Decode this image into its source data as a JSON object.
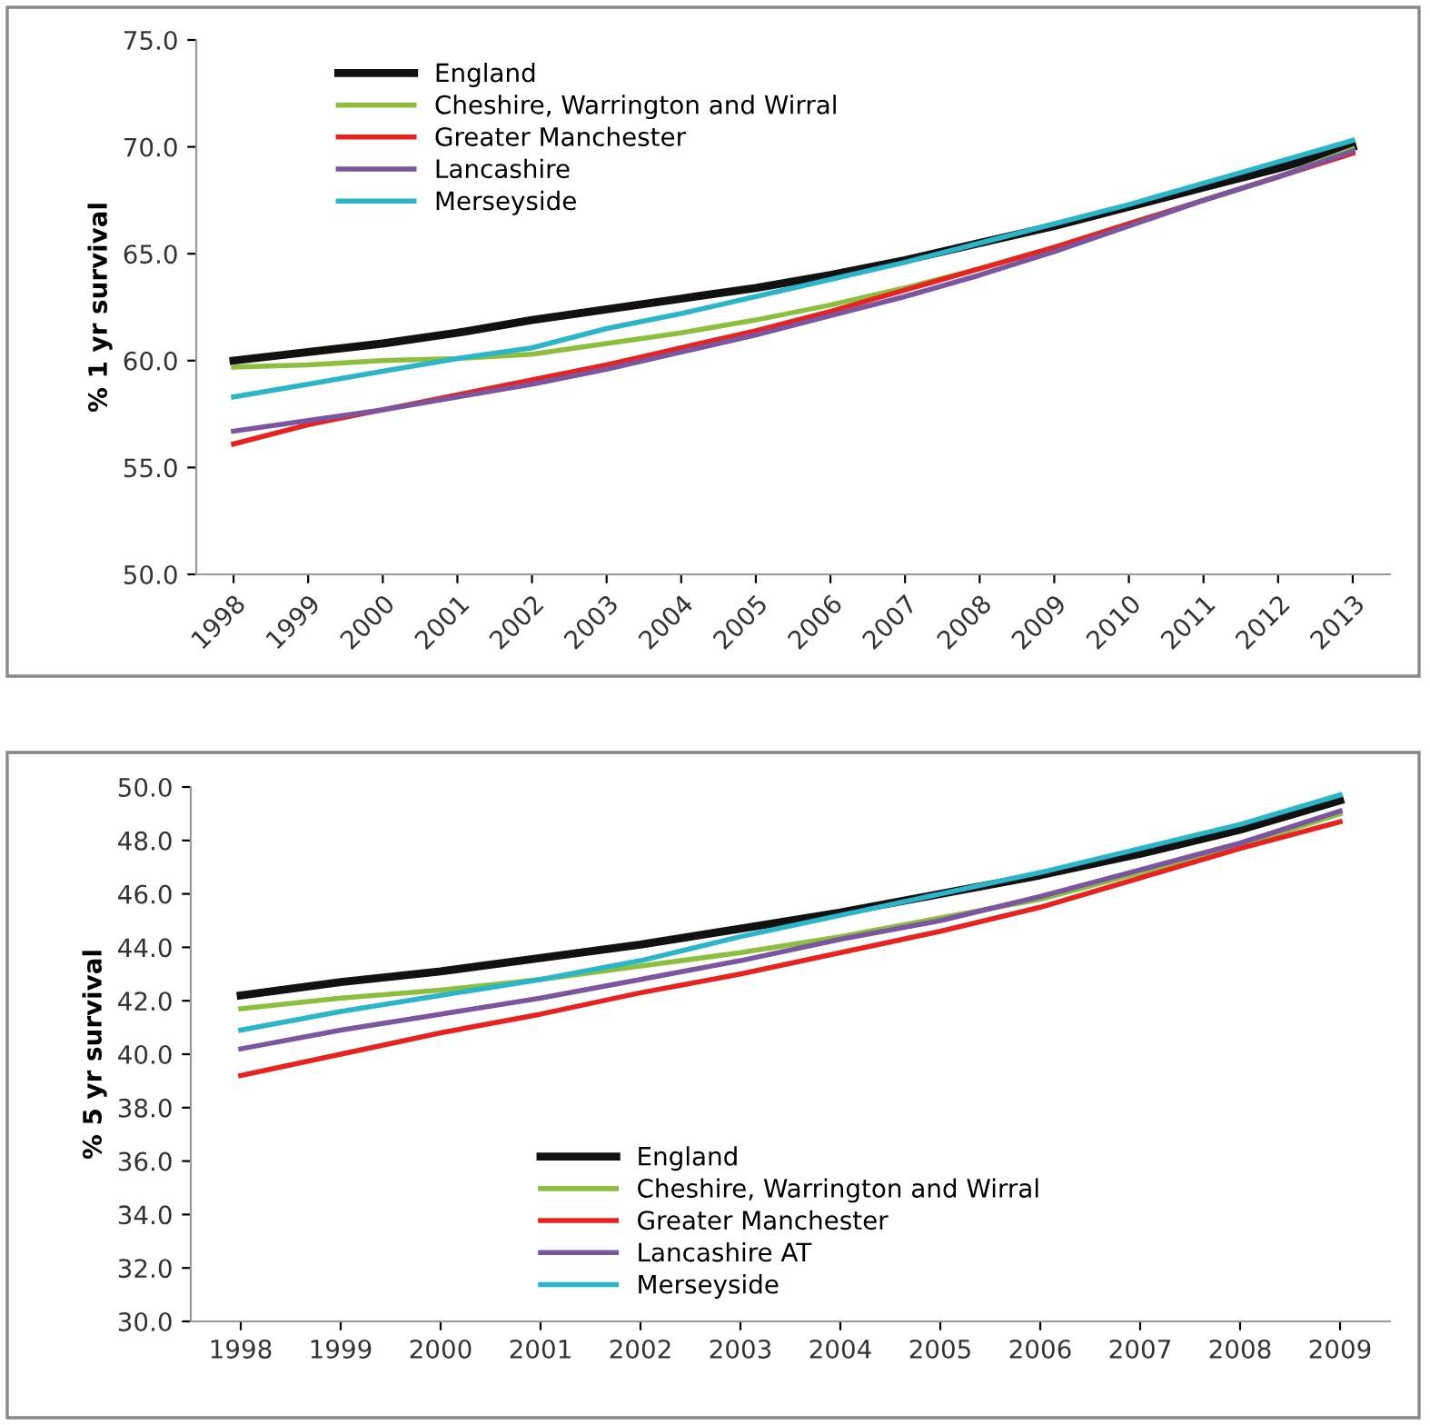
{
  "chart_data": [
    {
      "type": "line",
      "ylabel": "% 1 yr survival",
      "categories": [
        "1998",
        "1999",
        "2000",
        "2001",
        "2002",
        "2003",
        "2004",
        "2005",
        "2006",
        "2007",
        "2008",
        "2009",
        "2010",
        "2011",
        "2012",
        "2013"
      ],
      "ylim": [
        50,
        75
      ],
      "yticks": [
        {
          "value": 50,
          "label": "50.0"
        },
        {
          "value": 55,
          "label": "55.0"
        },
        {
          "value": 60,
          "label": "60.0"
        },
        {
          "value": 65,
          "label": "65.0"
        },
        {
          "value": 70,
          "label": "70.0"
        },
        {
          "value": 75,
          "label": "75.0"
        }
      ],
      "grid": false,
      "legend": "top left",
      "marker": "none",
      "line_style": "solid",
      "series": [
        {
          "name": "England",
          "color": "#111111",
          "values": [
            60.0,
            60.4,
            60.8,
            61.3,
            61.9,
            62.4,
            62.9,
            63.4,
            64.0,
            64.7,
            65.5,
            66.3,
            67.2,
            68.1,
            69.0,
            70.0
          ]
        },
        {
          "name": "Cheshire, Warrington and Wirral",
          "color": "#8dbf3f",
          "values": [
            59.7,
            59.8,
            60.0,
            60.1,
            60.3,
            60.8,
            61.3,
            61.9,
            62.6,
            63.4,
            64.3,
            65.3,
            66.4,
            67.5,
            68.6,
            69.9
          ]
        },
        {
          "name": "Greater Manchester",
          "color": "#e8231f",
          "values": [
            56.1,
            57.0,
            57.7,
            58.4,
            59.1,
            59.8,
            60.6,
            61.4,
            62.3,
            63.3,
            64.3,
            65.3,
            66.4,
            67.5,
            68.6,
            69.7
          ]
        },
        {
          "name": "Lancashire",
          "color": "#7b55a0",
          "values": [
            56.7,
            57.2,
            57.7,
            58.3,
            58.9,
            59.6,
            60.4,
            61.2,
            62.1,
            63.0,
            64.0,
            65.1,
            66.3,
            67.5,
            68.6,
            69.8
          ]
        },
        {
          "name": "Merseyside",
          "color": "#2bb5c8",
          "values": [
            58.3,
            58.9,
            59.5,
            60.1,
            60.6,
            61.5,
            62.2,
            63.0,
            63.8,
            64.6,
            65.5,
            66.4,
            67.3,
            68.3,
            69.3,
            70.3
          ]
        }
      ]
    },
    {
      "type": "line",
      "ylabel": "% 5 yr survival",
      "categories": [
        "1998",
        "1999",
        "2000",
        "2001",
        "2002",
        "2003",
        "2004",
        "2005",
        "2006",
        "2007",
        "2008",
        "2009"
      ],
      "ylim": [
        30,
        50
      ],
      "yticks": [
        {
          "value": 30,
          "label": "30.0"
        },
        {
          "value": 32,
          "label": "32.0"
        },
        {
          "value": 34,
          "label": "34.0"
        },
        {
          "value": 36,
          "label": "36.0"
        },
        {
          "value": 38,
          "label": "38.0"
        },
        {
          "value": 40,
          "label": "40.0"
        },
        {
          "value": 42,
          "label": "42.0"
        },
        {
          "value": 44,
          "label": "44.0"
        },
        {
          "value": 46,
          "label": "46.0"
        },
        {
          "value": 48,
          "label": "48.0"
        },
        {
          "value": 50,
          "label": "50.0"
        }
      ],
      "grid": false,
      "legend": "bottom",
      "marker": "none",
      "line_style": "solid",
      "series": [
        {
          "name": "England",
          "color": "#111111",
          "values": [
            42.2,
            42.7,
            43.1,
            43.6,
            44.1,
            44.7,
            45.3,
            46.0,
            46.7,
            47.5,
            48.4,
            49.5
          ]
        },
        {
          "name": "Cheshire, Warrington and Wirral",
          "color": "#8dbf3f",
          "values": [
            41.7,
            42.1,
            42.4,
            42.8,
            43.3,
            43.8,
            44.4,
            45.1,
            45.8,
            46.8,
            47.8,
            49.0
          ]
        },
        {
          "name": "Greater Manchester",
          "color": "#e8231f",
          "values": [
            39.2,
            40.0,
            40.8,
            41.5,
            42.3,
            43.0,
            43.8,
            44.6,
            45.5,
            46.6,
            47.7,
            48.7
          ]
        },
        {
          "name": "Lancashire AT",
          "color": "#7b55a0",
          "values": [
            40.2,
            40.9,
            41.5,
            42.1,
            42.8,
            43.5,
            44.3,
            45.0,
            45.9,
            46.9,
            47.9,
            49.1
          ]
        },
        {
          "name": "Merseyside",
          "color": "#2bb5c8",
          "values": [
            40.9,
            41.6,
            42.2,
            42.8,
            43.5,
            44.4,
            45.2,
            46.0,
            46.8,
            47.7,
            48.6,
            49.7
          ]
        }
      ]
    }
  ]
}
